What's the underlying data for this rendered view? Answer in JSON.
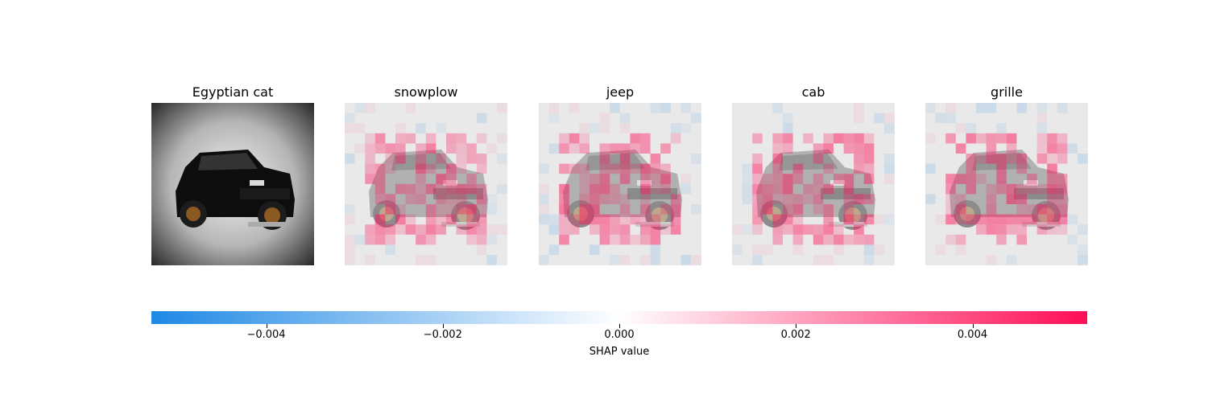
{
  "chart_data": {
    "type": "heatmap",
    "panels": [
      {
        "title": "Egyptian cat",
        "kind": "original-image"
      },
      {
        "title": "snowplow",
        "kind": "shap-overlay"
      },
      {
        "title": "jeep",
        "kind": "shap-overlay"
      },
      {
        "title": "cab",
        "kind": "shap-overlay"
      },
      {
        "title": "grille",
        "kind": "shap-overlay"
      }
    ],
    "colorbar": {
      "label": "SHAP value",
      "range": [
        -0.0053,
        0.0053
      ],
      "ticks": [
        -0.004,
        -0.002,
        0.0,
        0.002,
        0.004
      ],
      "tick_labels": [
        "−0.004",
        "−0.002",
        "0.000",
        "0.002",
        "0.004"
      ],
      "colors": {
        "negative": "#1e88e5",
        "zero": "#ffffff",
        "positive": "#ff0d57"
      }
    }
  }
}
